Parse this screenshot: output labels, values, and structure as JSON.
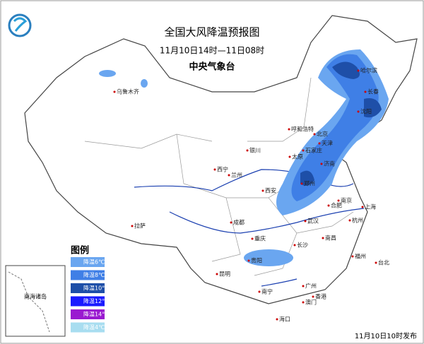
{
  "header": {
    "title": "全国大风降温预报图",
    "subtitle": "11月10日14时—11日08时",
    "agency": "中央气象台"
  },
  "legend": {
    "title": "图例",
    "items": [
      {
        "label": "降温6℃",
        "color": "#6aa6f0"
      },
      {
        "label": "降温8℃",
        "color": "#3f7fe6"
      },
      {
        "label": "降温10℃",
        "color": "#1e4fa8"
      },
      {
        "label": "降温12℃",
        "color": "#1a1aff"
      },
      {
        "label": "降温14℃",
        "color": "#9a1ad0"
      },
      {
        "label": "降温4℃",
        "color": "#a8ddf0"
      }
    ]
  },
  "cities": [
    "哈尔滨",
    "长春",
    "沈阳",
    "乌鲁木齐",
    "呼和浩特",
    "北京",
    "天津",
    "石家庄",
    "太原",
    "济南",
    "银川",
    "西宁",
    "兰州",
    "郑州",
    "西安",
    "合肥",
    "南京",
    "上海",
    "杭州",
    "武汉",
    "成都",
    "重庆",
    "拉萨",
    "长沙",
    "南昌",
    "贵阳",
    "昆明",
    "福州",
    "台北",
    "南宁",
    "广州",
    "香港",
    "澳门",
    "海口"
  ],
  "inset": {
    "label": "南海诸岛"
  },
  "footer": "11月10日10时发布"
}
